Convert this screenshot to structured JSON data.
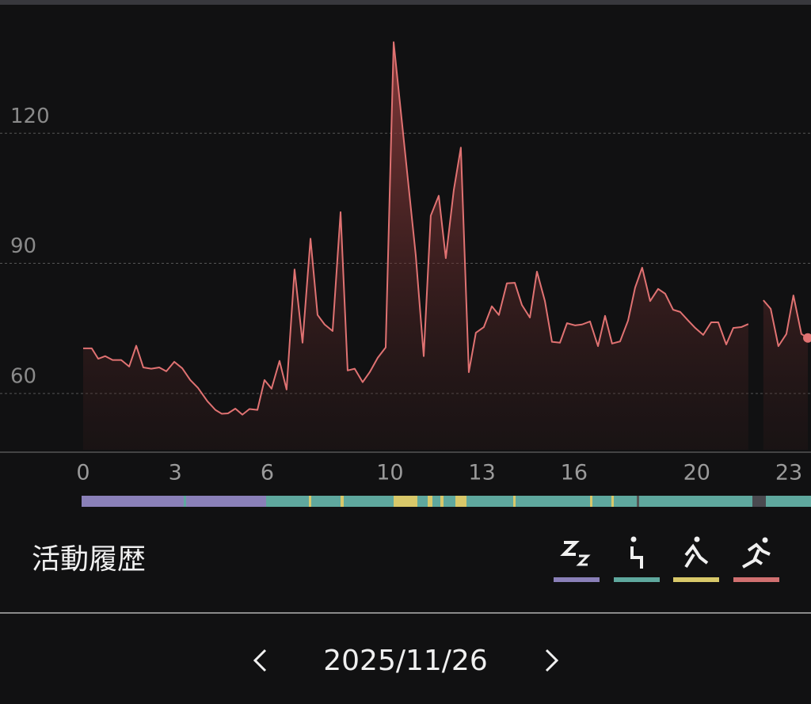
{
  "chart_data": {
    "type": "area",
    "x": [
      0,
      0.28,
      0.49,
      0.72,
      0.96,
      1.24,
      1.5,
      1.73,
      1.96,
      2.22,
      2.48,
      2.71,
      2.97,
      3.23,
      3.49,
      3.74,
      4.05,
      4.31,
      4.52,
      4.72,
      4.96,
      5.19,
      5.42,
      5.68,
      5.91,
      6.14,
      6.4,
      6.63,
      6.89,
      7.15,
      7.41,
      7.64,
      7.87,
      8.13,
      8.39,
      8.62,
      8.85,
      9.11,
      9.34,
      9.6,
      9.86,
      10.12,
      10.84,
      11.1,
      11.33,
      11.59,
      11.82,
      12.08,
      12.31,
      12.57,
      12.8,
      13.06,
      13.32,
      13.55,
      13.81,
      14.07,
      14.3,
      14.56,
      14.79,
      15.05,
      15.28,
      15.54,
      15.77,
      16.03,
      16.26,
      16.52,
      16.78,
      17.01,
      17.24,
      17.5,
      17.76,
      17.99,
      18.22,
      18.48,
      18.74,
      18.97,
      19.23,
      19.46,
      19.72,
      19.95,
      20.21,
      20.47,
      20.7,
      20.96,
      21.19,
      21.45,
      21.68,
      21.94,
      22.17,
      22.41,
      22.66,
      22.92,
      23.15,
      23.41,
      23.62
    ],
    "values": [
      70.4,
      70.4,
      68,
      68.6,
      67.7,
      67.7,
      66.2,
      71,
      66,
      65.7,
      66,
      65.1,
      67.3,
      65.8,
      63.1,
      61.3,
      58.2,
      56.2,
      55.3,
      55.4,
      56.5,
      55.1,
      56.4,
      56.2,
      63.1,
      61.1,
      67.5,
      60.9,
      88.6,
      71.7,
      95.7,
      78.1,
      75.9,
      74.4,
      101.8,
      65.3,
      65.7,
      62.6,
      64.9,
      68.2,
      70.6,
      141,
      91.9,
      68.6,
      101,
      105.6,
      91.2,
      106.9,
      116.7,
      64.9,
      74,
      75.3,
      80.1,
      78.1,
      85.4,
      85.5,
      80.4,
      77.5,
      88.1,
      81.3,
      71.9,
      71.7,
      76.2,
      75.7,
      75.9,
      76.6,
      70.9,
      77.9,
      71.5,
      72,
      76.8,
      84.4,
      89,
      81.3,
      84.1,
      83,
      79.3,
      78.8,
      76.8,
      75.1,
      73.5,
      76.4,
      76.4,
      71.3,
      75.1,
      75.3,
      76,
      null,
      81.5,
      79.5,
      70.9,
      73.7,
      82.6,
      73.7,
      72.8
    ],
    "color": "#e07272",
    "xlim": [
      0,
      23
    ],
    "xticks": [
      0,
      3,
      6,
      10,
      13,
      16,
      20,
      23
    ],
    "ylim": [
      47,
      150
    ],
    "yticks": [
      60,
      90,
      120
    ],
    "grid": true
  },
  "section_title": "活動履歴",
  "date": "2025/11/26"
}
